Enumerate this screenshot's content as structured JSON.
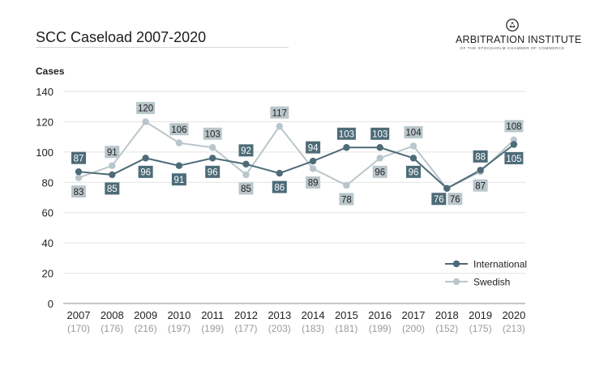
{
  "header": {
    "title": "SCC Caseload 2007-2020",
    "brand_name": "ARBITRATION INSTITUTE",
    "brand_sub": "OF THE STOCKHOLM CHAMBER OF COMMERCE",
    "brand_icon": "chamber-emblem-icon"
  },
  "colors": {
    "international": "#4d6b78",
    "swedish": "#b9c6cb",
    "grid": "#e2e2e2",
    "axis": "#8f8f8f",
    "total_label": "#9a9a9a"
  },
  "chart_data": {
    "type": "line",
    "title": "SCC Caseload 2007-2020",
    "ylabel": "Cases",
    "xlabel": "",
    "ylim": [
      0,
      140
    ],
    "yticks": [
      0,
      20,
      40,
      60,
      80,
      100,
      120,
      140
    ],
    "grid": true,
    "legend_position": "bottom-right",
    "categories": [
      "2007",
      "2008",
      "2009",
      "2010",
      "2011",
      "2012",
      "2013",
      "2014",
      "2015",
      "2016",
      "2017",
      "2018",
      "2019",
      "2020"
    ],
    "totals": [
      "(170)",
      "(176)",
      "(216)",
      "(197)",
      "(199)",
      "(177)",
      "(203)",
      "(183)",
      "(181)",
      "(199)",
      "(200)",
      "(152)",
      "(175)",
      "(213)"
    ],
    "series": [
      {
        "name": "International",
        "values": [
          87,
          85,
          96,
          91,
          96,
          92,
          86,
          94,
          103,
          103,
          96,
          76,
          88,
          105
        ]
      },
      {
        "name": "Swedish",
        "values": [
          83,
          91,
          120,
          106,
          103,
          85,
          117,
          89,
          78,
          96,
          104,
          76,
          87,
          108
        ]
      }
    ]
  }
}
